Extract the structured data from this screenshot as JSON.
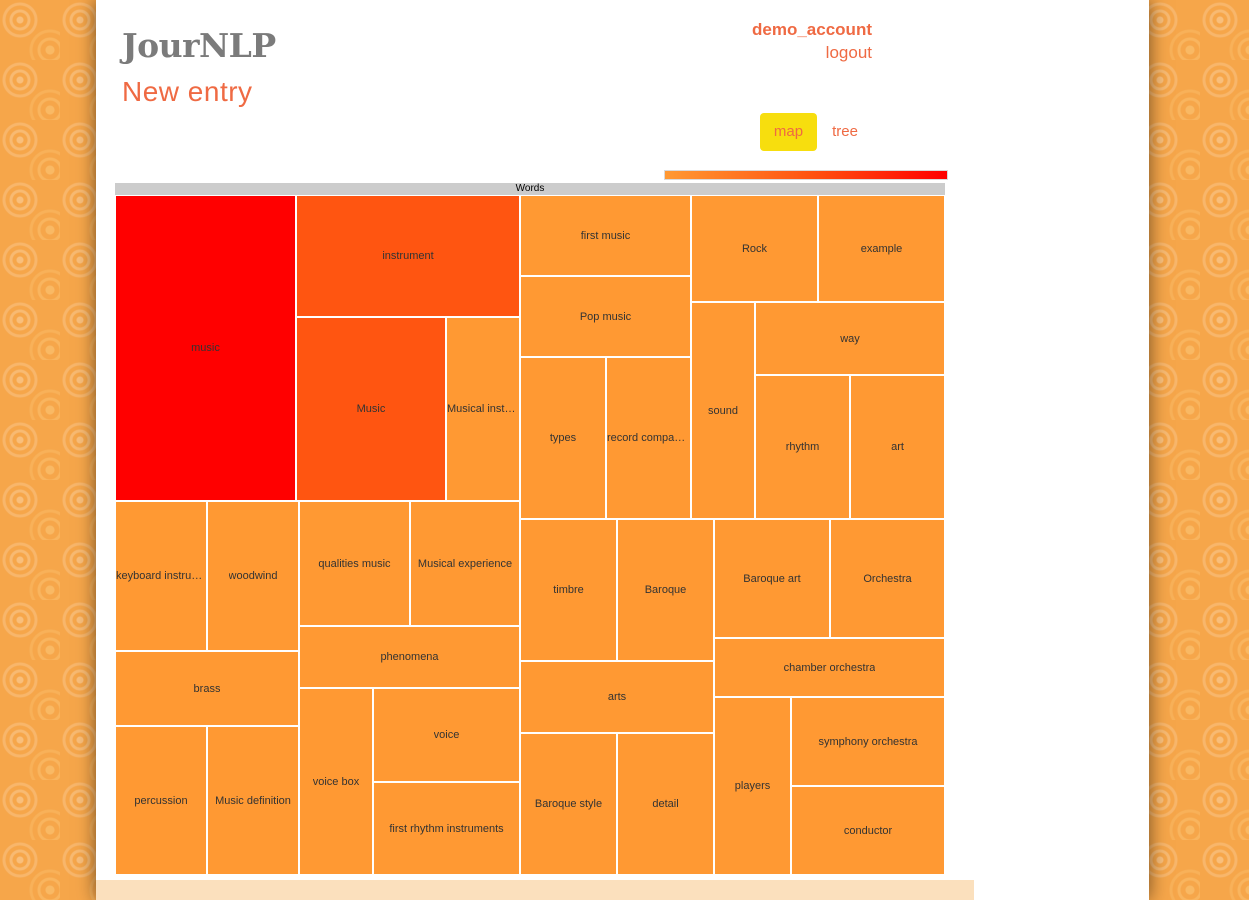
{
  "app": {
    "title": "JourNLP",
    "page_heading": "New entry"
  },
  "user": {
    "username": "demo_account",
    "logout_label": "logout"
  },
  "view_tabs": [
    {
      "label": "map",
      "active": true
    },
    {
      "label": "tree",
      "active": false
    }
  ],
  "colors": {
    "accent": "#ef6a43",
    "active_tab": "#f7de0e",
    "scale_low": "#ff9933",
    "scale_mid": "#ff5511",
    "scale_high": "#ff0000",
    "header_bar": "#cccccc"
  },
  "treemap": {
    "root_label": "Words",
    "tiles": [
      {
        "label": "music",
        "display": "music",
        "color": "#ff0000"
      },
      {
        "label": "instrument",
        "display": "instrument",
        "color": "#ff5511"
      },
      {
        "label": "Music",
        "display": "Music",
        "color": "#ff5511"
      },
      {
        "label": "Musical instruments",
        "display": "Musical instru...",
        "color": "#ff9933"
      },
      {
        "label": "first music",
        "display": "first music",
        "color": "#ff9933"
      },
      {
        "label": "Pop music",
        "display": "Pop music",
        "color": "#ff9933"
      },
      {
        "label": "types",
        "display": "types",
        "color": "#ff9933"
      },
      {
        "label": "record companies",
        "display": "record compani...",
        "color": "#ff9933"
      },
      {
        "label": "Rock",
        "display": "Rock",
        "color": "#ff9933"
      },
      {
        "label": "example",
        "display": "example",
        "color": "#ff9933"
      },
      {
        "label": "sound",
        "display": "sound",
        "color": "#ff9933"
      },
      {
        "label": "way",
        "display": "way",
        "color": "#ff9933"
      },
      {
        "label": "rhythm",
        "display": "rhythm",
        "color": "#ff9933"
      },
      {
        "label": "art",
        "display": "art",
        "color": "#ff9933"
      },
      {
        "label": "keyboard instruments",
        "display": "keyboard instrum...",
        "color": "#ff9933"
      },
      {
        "label": "woodwind",
        "display": "woodwind",
        "color": "#ff9933"
      },
      {
        "label": "brass",
        "display": "brass",
        "color": "#ff9933"
      },
      {
        "label": "percussion",
        "display": "percussion",
        "color": "#ff9933"
      },
      {
        "label": "Music definition",
        "display": "Music definition",
        "color": "#ff9933"
      },
      {
        "label": "qualities music",
        "display": "qualities music",
        "color": "#ff9933"
      },
      {
        "label": "Musical experience",
        "display": "Musical experience",
        "color": "#ff9933"
      },
      {
        "label": "phenomena",
        "display": "phenomena",
        "color": "#ff9933"
      },
      {
        "label": "voice box",
        "display": "voice box",
        "color": "#ff9933"
      },
      {
        "label": "voice",
        "display": "voice",
        "color": "#ff9933"
      },
      {
        "label": "first rhythm instruments",
        "display": "first rhythm instruments",
        "color": "#ff9933"
      },
      {
        "label": "timbre",
        "display": "timbre",
        "color": "#ff9933"
      },
      {
        "label": "Baroque",
        "display": "Baroque",
        "color": "#ff9933"
      },
      {
        "label": "arts",
        "display": "arts",
        "color": "#ff9933"
      },
      {
        "label": "Baroque style",
        "display": "Baroque style",
        "color": "#ff9933"
      },
      {
        "label": "detail",
        "display": "detail",
        "color": "#ff9933"
      },
      {
        "label": "Baroque art",
        "display": "Baroque art",
        "color": "#ff9933"
      },
      {
        "label": "Orchestra",
        "display": "Orchestra",
        "color": "#ff9933"
      },
      {
        "label": "chamber orchestra",
        "display": "chamber orchestra",
        "color": "#ff9933"
      },
      {
        "label": "players",
        "display": "players",
        "color": "#ff9933"
      },
      {
        "label": "symphony orchestra",
        "display": "symphony orchestra",
        "color": "#ff9933"
      },
      {
        "label": "conductor",
        "display": "conductor",
        "color": "#ff9933"
      }
    ]
  }
}
